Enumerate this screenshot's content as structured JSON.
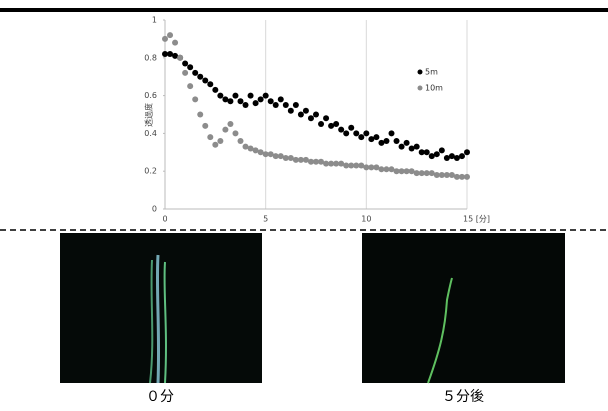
{
  "chart_data": {
    "type": "scatter",
    "ylabel": "透過度",
    "x": [
      0,
      0.25,
      0.5,
      0.75,
      1,
      1.25,
      1.5,
      1.75,
      2,
      2.25,
      2.5,
      2.75,
      3,
      3.25,
      3.5,
      3.75,
      4,
      4.25,
      4.5,
      4.75,
      5,
      5.25,
      5.5,
      5.75,
      6,
      6.25,
      6.5,
      6.75,
      7,
      7.25,
      7.5,
      7.75,
      8,
      8.25,
      8.5,
      8.75,
      9,
      9.25,
      9.5,
      9.75,
      10,
      10.25,
      10.5,
      10.75,
      11,
      11.25,
      11.5,
      11.75,
      12,
      12.25,
      12.5,
      12.75,
      13,
      13.25,
      13.5,
      13.75,
      14,
      14.25,
      14.5,
      14.75,
      15
    ],
    "series": [
      {
        "name": "5m",
        "color": "#000000",
        "values": [
          0.82,
          0.82,
          0.81,
          0.8,
          0.77,
          0.75,
          0.72,
          0.7,
          0.68,
          0.66,
          0.63,
          0.6,
          0.58,
          0.57,
          0.6,
          0.57,
          0.55,
          0.6,
          0.56,
          0.58,
          0.6,
          0.57,
          0.55,
          0.58,
          0.55,
          0.52,
          0.55,
          0.5,
          0.52,
          0.48,
          0.5,
          0.45,
          0.48,
          0.44,
          0.45,
          0.42,
          0.4,
          0.43,
          0.4,
          0.38,
          0.4,
          0.37,
          0.38,
          0.35,
          0.36,
          0.4,
          0.36,
          0.33,
          0.35,
          0.32,
          0.33,
          0.3,
          0.3,
          0.28,
          0.29,
          0.31,
          0.27,
          0.28,
          0.27,
          0.28,
          0.3
        ]
      },
      {
        "name": "10m",
        "color": "#8c8c8c",
        "values": [
          0.9,
          0.92,
          0.88,
          0.8,
          0.72,
          0.65,
          0.58,
          0.5,
          0.44,
          0.38,
          0.34,
          0.36,
          0.42,
          0.45,
          0.4,
          0.36,
          0.33,
          0.32,
          0.31,
          0.3,
          0.29,
          0.29,
          0.28,
          0.28,
          0.27,
          0.27,
          0.26,
          0.26,
          0.26,
          0.25,
          0.25,
          0.25,
          0.24,
          0.24,
          0.24,
          0.24,
          0.23,
          0.23,
          0.23,
          0.23,
          0.22,
          0.22,
          0.22,
          0.21,
          0.21,
          0.21,
          0.2,
          0.2,
          0.2,
          0.2,
          0.19,
          0.19,
          0.19,
          0.19,
          0.18,
          0.18,
          0.18,
          0.18,
          0.17,
          0.17,
          0.17
        ]
      }
    ],
    "xlim": [
      0,
      15
    ],
    "xticks": [
      0,
      5,
      10,
      {
        "value": 15,
        "label": "15 [分]"
      }
    ],
    "ylim": [
      0,
      1
    ],
    "yticks": [
      0,
      0.2,
      0.4,
      0.6,
      0.8,
      1
    ],
    "grid": "x",
    "legend": "upper right"
  },
  "captions": [
    "０分",
    "５分後"
  ]
}
